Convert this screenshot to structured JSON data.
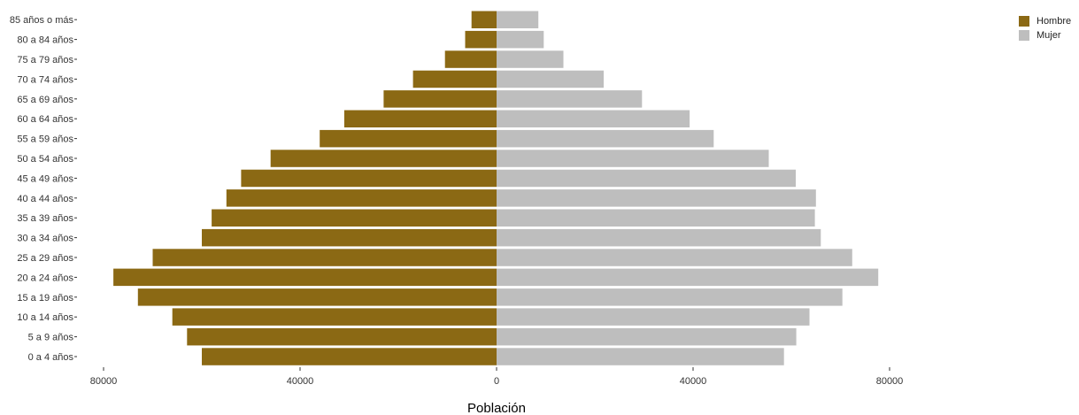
{
  "chart_data": {
    "type": "bar",
    "orientation": "horizontal",
    "layout": "population-pyramid",
    "xlabel": "Población",
    "xlim": [
      -80000,
      80000
    ],
    "x_ticks": [
      -80000,
      -40000,
      0,
      40000,
      80000
    ],
    "x_tick_labels": [
      "80000",
      "40000",
      "0",
      "40000",
      "80000"
    ],
    "grid": false,
    "legend_position": "top-right",
    "categories": [
      "0 a 4 años",
      "5 a 9 años",
      "10 a 14 años",
      "15 a 19 años",
      "20 a 24 años",
      "25 a 29 años",
      "30 a 34 años",
      "35 a 39 años",
      "40 a 44 años",
      "45 a 49 años",
      "50 a 54 años",
      "55 a 59 años",
      "60 a 64 años",
      "65 a 69 años",
      "70 a 74 años",
      "75 a 79 años",
      "80 a 84 años",
      "85 años o más"
    ],
    "series": [
      {
        "name": "Hombre",
        "color": "#8B6914",
        "side": "left",
        "values": [
          60000,
          63000,
          66000,
          73000,
          78000,
          70000,
          60000,
          58000,
          55000,
          52000,
          46000,
          36000,
          31000,
          23000,
          17000,
          10500,
          6400,
          5100
        ]
      },
      {
        "name": "Mujer",
        "color": "#BEBEBE",
        "side": "right",
        "values": [
          58500,
          61000,
          63700,
          70400,
          77700,
          72400,
          66000,
          64800,
          65000,
          60900,
          55400,
          44200,
          39300,
          29600,
          21800,
          13600,
          9600,
          8500
        ]
      }
    ]
  }
}
